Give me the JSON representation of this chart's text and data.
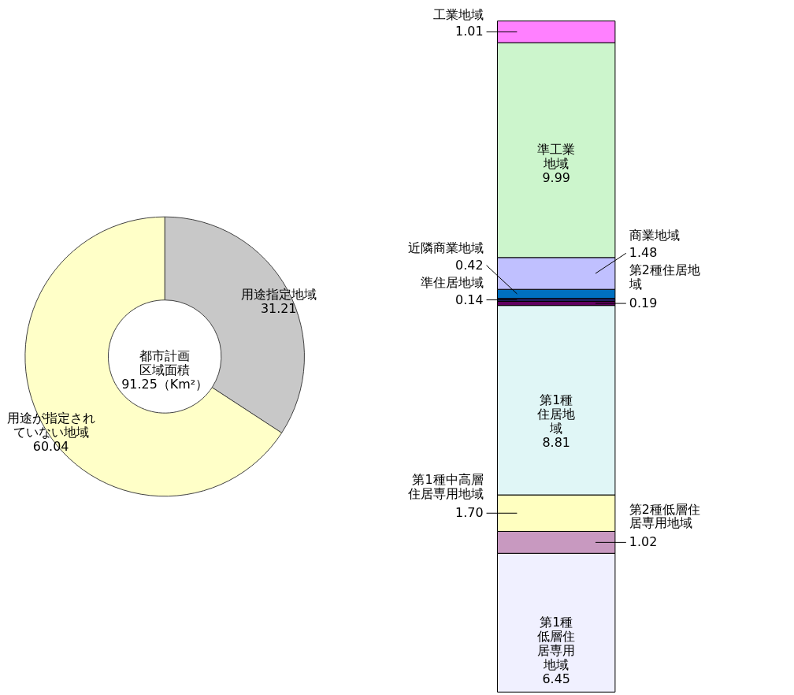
{
  "chart_data": [
    {
      "type": "donut",
      "categories": [
        "用途指定地域",
        "用途が指定されていない地域"
      ],
      "values": [
        31.21,
        60.04
      ],
      "colors": [
        "#c8c8c8",
        "#ffffc8"
      ],
      "data_labels": true,
      "annotations": [
        "都市計画区域面積",
        "91.25（Km²）"
      ]
    },
    {
      "type": "bar",
      "stacked": true,
      "categories": [
        null
      ],
      "series": [
        {
          "name": "第1種低層住居専用地域",
          "color": "#f0f0ff",
          "values": [
            6.45
          ],
          "value_labels": [
            "6.45"
          ]
        },
        {
          "name": "第2種低層住居専用地域",
          "color": "#c899c0",
          "values": [
            1.02
          ],
          "value_labels": [
            "1.02"
          ]
        },
        {
          "name": "第1種中高層住居専用地域",
          "color": "#ffffc0",
          "values": [
            1.7
          ],
          "value_labels": [
            "1.70"
          ]
        },
        {
          "name": "第1種住居地域",
          "color": "#e0f6f6",
          "values": [
            8.81
          ],
          "value_labels": [
            "8.81"
          ]
        },
        {
          "name": "第2種住居地域",
          "color": "#600060",
          "values": [
            0.19
          ],
          "value_labels": [
            "0.19"
          ]
        },
        {
          "name": "準住居地域",
          "color": "#202060",
          "values": [
            0.14
          ],
          "value_labels": [
            "0.14"
          ]
        },
        {
          "name": "近隣商業地域",
          "color": "#0070c0",
          "values": [
            0.42
          ],
          "value_labels": [
            "0.42"
          ]
        },
        {
          "name": "商業地域",
          "color": "#c0c0ff",
          "values": [
            1.48
          ],
          "value_labels": [
            "1.48"
          ]
        },
        {
          "name": "準工業地域",
          "color": "#ccf5cc",
          "values": [
            9.99
          ],
          "value_labels": [
            "9.99"
          ]
        },
        {
          "name": "工業地域",
          "color": "#ff80ff",
          "values": [
            1.01
          ],
          "value_labels": [
            "1.01"
          ]
        }
      ]
    }
  ]
}
